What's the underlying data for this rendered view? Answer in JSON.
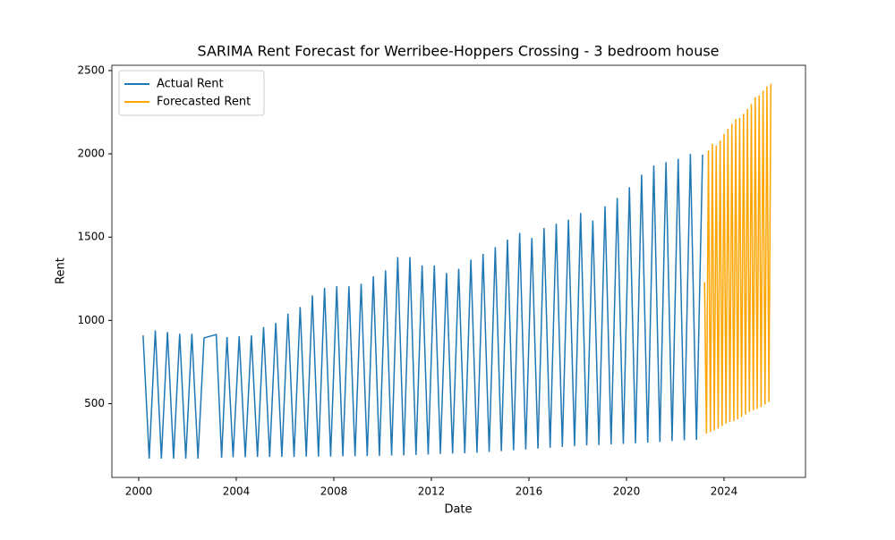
{
  "chart_data": {
    "type": "line",
    "title": "SARIMA Rent Forecast for Werribee-Hoppers Crossing - 3 bedroom house",
    "x_label": "Date",
    "y_label": "Rent",
    "xlim": [
      1998.9,
      2027.34
    ],
    "ylim": [
      57,
      2532
    ],
    "xticks": [
      2000,
      2004,
      2008,
      2012,
      2016,
      2020,
      2024
    ],
    "yticks": [
      500,
      1000,
      1500,
      2000,
      2500
    ],
    "legend": "upper left",
    "grid": false,
    "series": [
      {
        "name": "Actual Rent",
        "color": "#1f77b4",
        "x": [
          2000.18,
          2000.43,
          2000.68,
          2000.93,
          2001.18,
          2001.43,
          2001.68,
          2001.93,
          2002.18,
          2002.43,
          2002.68,
          2003.18,
          2003.4,
          2003.62,
          2003.87,
          2004.12,
          2004.37,
          2004.62,
          2004.87,
          2005.12,
          2005.37,
          2005.62,
          2005.87,
          2006.12,
          2006.37,
          2006.62,
          2006.87,
          2007.12,
          2007.37,
          2007.62,
          2007.87,
          2008.12,
          2008.37,
          2008.62,
          2008.87,
          2009.12,
          2009.37,
          2009.62,
          2009.87,
          2010.12,
          2010.37,
          2010.62,
          2010.87,
          2011.12,
          2011.37,
          2011.62,
          2011.87,
          2012.12,
          2012.37,
          2012.62,
          2012.87,
          2013.12,
          2013.37,
          2013.62,
          2013.87,
          2014.12,
          2014.37,
          2014.62,
          2014.87,
          2015.12,
          2015.37,
          2015.62,
          2015.87,
          2016.12,
          2016.37,
          2016.62,
          2016.87,
          2017.12,
          2017.37,
          2017.62,
          2017.87,
          2018.12,
          2018.37,
          2018.62,
          2018.87,
          2019.12,
          2019.37,
          2019.62,
          2019.87,
          2020.12,
          2020.37,
          2020.62,
          2020.87,
          2021.12,
          2021.37,
          2021.62,
          2021.87,
          2022.12,
          2022.37,
          2022.62,
          2022.87,
          2023.12
        ],
        "values": [
          910,
          170,
          940,
          170,
          930,
          170,
          920,
          170,
          920,
          170,
          895,
          915,
          175,
          900,
          178,
          905,
          178,
          910,
          180,
          960,
          180,
          985,
          180,
          1040,
          180,
          1080,
          182,
          1150,
          182,
          1195,
          182,
          1205,
          184,
          1205,
          184,
          1220,
          185,
          1265,
          186,
          1300,
          188,
          1380,
          190,
          1380,
          192,
          1330,
          195,
          1330,
          198,
          1285,
          200,
          1310,
          202,
          1365,
          205,
          1400,
          210,
          1440,
          215,
          1485,
          220,
          1525,
          225,
          1495,
          230,
          1555,
          235,
          1580,
          240,
          1605,
          245,
          1645,
          250,
          1600,
          252,
          1685,
          255,
          1735,
          258,
          1800,
          262,
          1875,
          266,
          1930,
          270,
          1950,
          275,
          1970,
          280,
          2000,
          282,
          1995
        ]
      },
      {
        "name": "Forecasted Rent",
        "color": "#ffa500",
        "x": [
          2023.2,
          2023.28,
          2023.36,
          2023.44,
          2023.52,
          2023.6,
          2023.68,
          2023.76,
          2023.84,
          2023.92,
          2024.0,
          2024.08,
          2024.16,
          2024.24,
          2024.32,
          2024.4,
          2024.48,
          2024.56,
          2024.64,
          2024.72,
          2024.8,
          2024.88,
          2024.96,
          2025.04,
          2025.12,
          2025.2,
          2025.28,
          2025.36,
          2025.44,
          2025.52,
          2025.6,
          2025.68,
          2025.76,
          2025.84,
          2025.92
        ],
        "values": [
          1230,
          320,
          2020,
          330,
          2060,
          340,
          2050,
          350,
          2080,
          365,
          2120,
          380,
          2150,
          390,
          2180,
          395,
          2210,
          405,
          2215,
          420,
          2240,
          435,
          2270,
          450,
          2300,
          460,
          2340,
          470,
          2350,
          480,
          2380,
          495,
          2405,
          510,
          2420
        ]
      }
    ]
  }
}
